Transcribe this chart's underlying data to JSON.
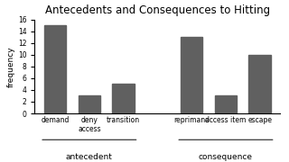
{
  "title": "Antecedents and Consequences to Hitting",
  "ylabel": "frequency",
  "bar_color": "#606060",
  "ylim": [
    0,
    16
  ],
  "yticks": [
    0,
    2,
    4,
    6,
    8,
    10,
    12,
    14,
    16
  ],
  "categories": [
    "demand",
    "deny\naccess",
    "transition",
    "reprimand",
    "access item",
    "escape"
  ],
  "values": [
    15,
    3,
    5,
    13,
    3,
    10
  ],
  "bar_positions": [
    0.5,
    1.5,
    2.5,
    4.5,
    5.5,
    6.5
  ],
  "bar_width": 0.65,
  "group_labels": [
    "antecedent",
    "consequence"
  ],
  "group_centers": [
    1.5,
    5.5
  ],
  "group_line_ranges": [
    [
      0.05,
      2.95
    ],
    [
      4.05,
      6.95
    ]
  ],
  "background_color": "#ffffff",
  "title_fontsize": 8.5,
  "axis_label_fontsize": 6.5,
  "tick_fontsize": 5.5,
  "group_label_fontsize": 6.5,
  "xlim": [
    -0.1,
    7.1
  ]
}
